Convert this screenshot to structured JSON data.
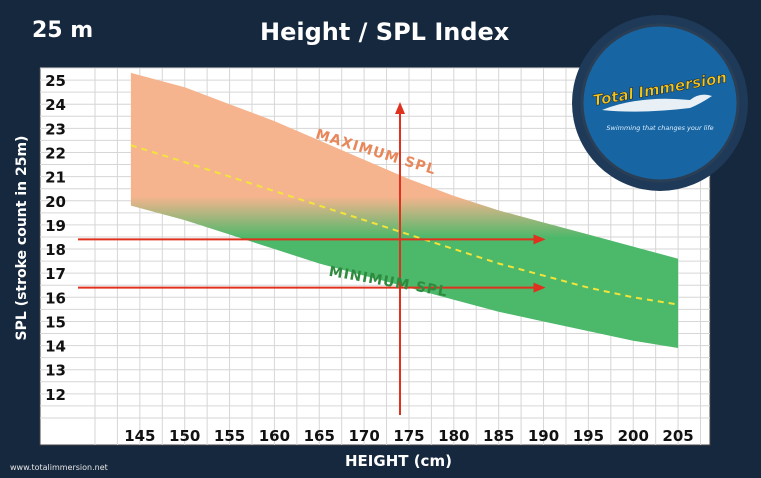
{
  "header": {
    "depth_label": "25 m",
    "title": "Height / SPL Index"
  },
  "logo": {
    "brand": "Total Immersion",
    "tagline": "Swimming that changes your life"
  },
  "footer": {
    "website": "www.totalimmersion.net"
  },
  "colors": {
    "background": "#16283d",
    "plot_background": "#ffffff",
    "max_band": "#f6b48e",
    "min_band": "#4cb86a",
    "average_line": "#f2e43a",
    "arrows": "#e0301e",
    "max_label": "#e8875a",
    "min_label": "#2e8b3e"
  },
  "chart_data": {
    "type": "area",
    "xlabel": "HEIGHT (cm)",
    "ylabel": "SPL (stroke count in 25m)",
    "xlim": [
      140,
      208
    ],
    "ylim": [
      11,
      25.5
    ],
    "xticks": [
      145,
      150,
      155,
      160,
      165,
      170,
      175,
      180,
      185,
      190,
      195,
      200,
      205
    ],
    "yticks": [
      12,
      13,
      14,
      15,
      16,
      17,
      18,
      19,
      20,
      21,
      22,
      23,
      24,
      25
    ],
    "grid": true,
    "x": [
      144,
      150,
      155,
      160,
      165,
      170,
      175,
      180,
      185,
      190,
      195,
      200,
      205
    ],
    "series": [
      {
        "name": "MAXIMUM SPL",
        "values": [
          25.3,
          24.7,
          24.0,
          23.3,
          22.5,
          21.7,
          20.9,
          20.2,
          19.6,
          19.1,
          18.6,
          18.1,
          17.6
        ]
      },
      {
        "values": [
          22.3,
          21.6,
          21.0,
          20.4,
          19.8,
          19.2,
          18.6,
          18.0,
          17.4,
          16.9,
          16.4,
          16.0,
          15.7
        ]
      },
      {
        "name": "MINIMUM SPL",
        "values": [
          19.8,
          19.2,
          18.6,
          18.0,
          17.4,
          16.9,
          16.4,
          15.9,
          15.4,
          15.0,
          14.6,
          14.2,
          13.9
        ]
      }
    ],
    "annotations": {
      "max_label": "MAXIMUM SPL",
      "min_label": "MINIMUM SPL",
      "reference_height": 174,
      "reference_spl_high": 18.4,
      "reference_spl_low": 16.4
    }
  }
}
